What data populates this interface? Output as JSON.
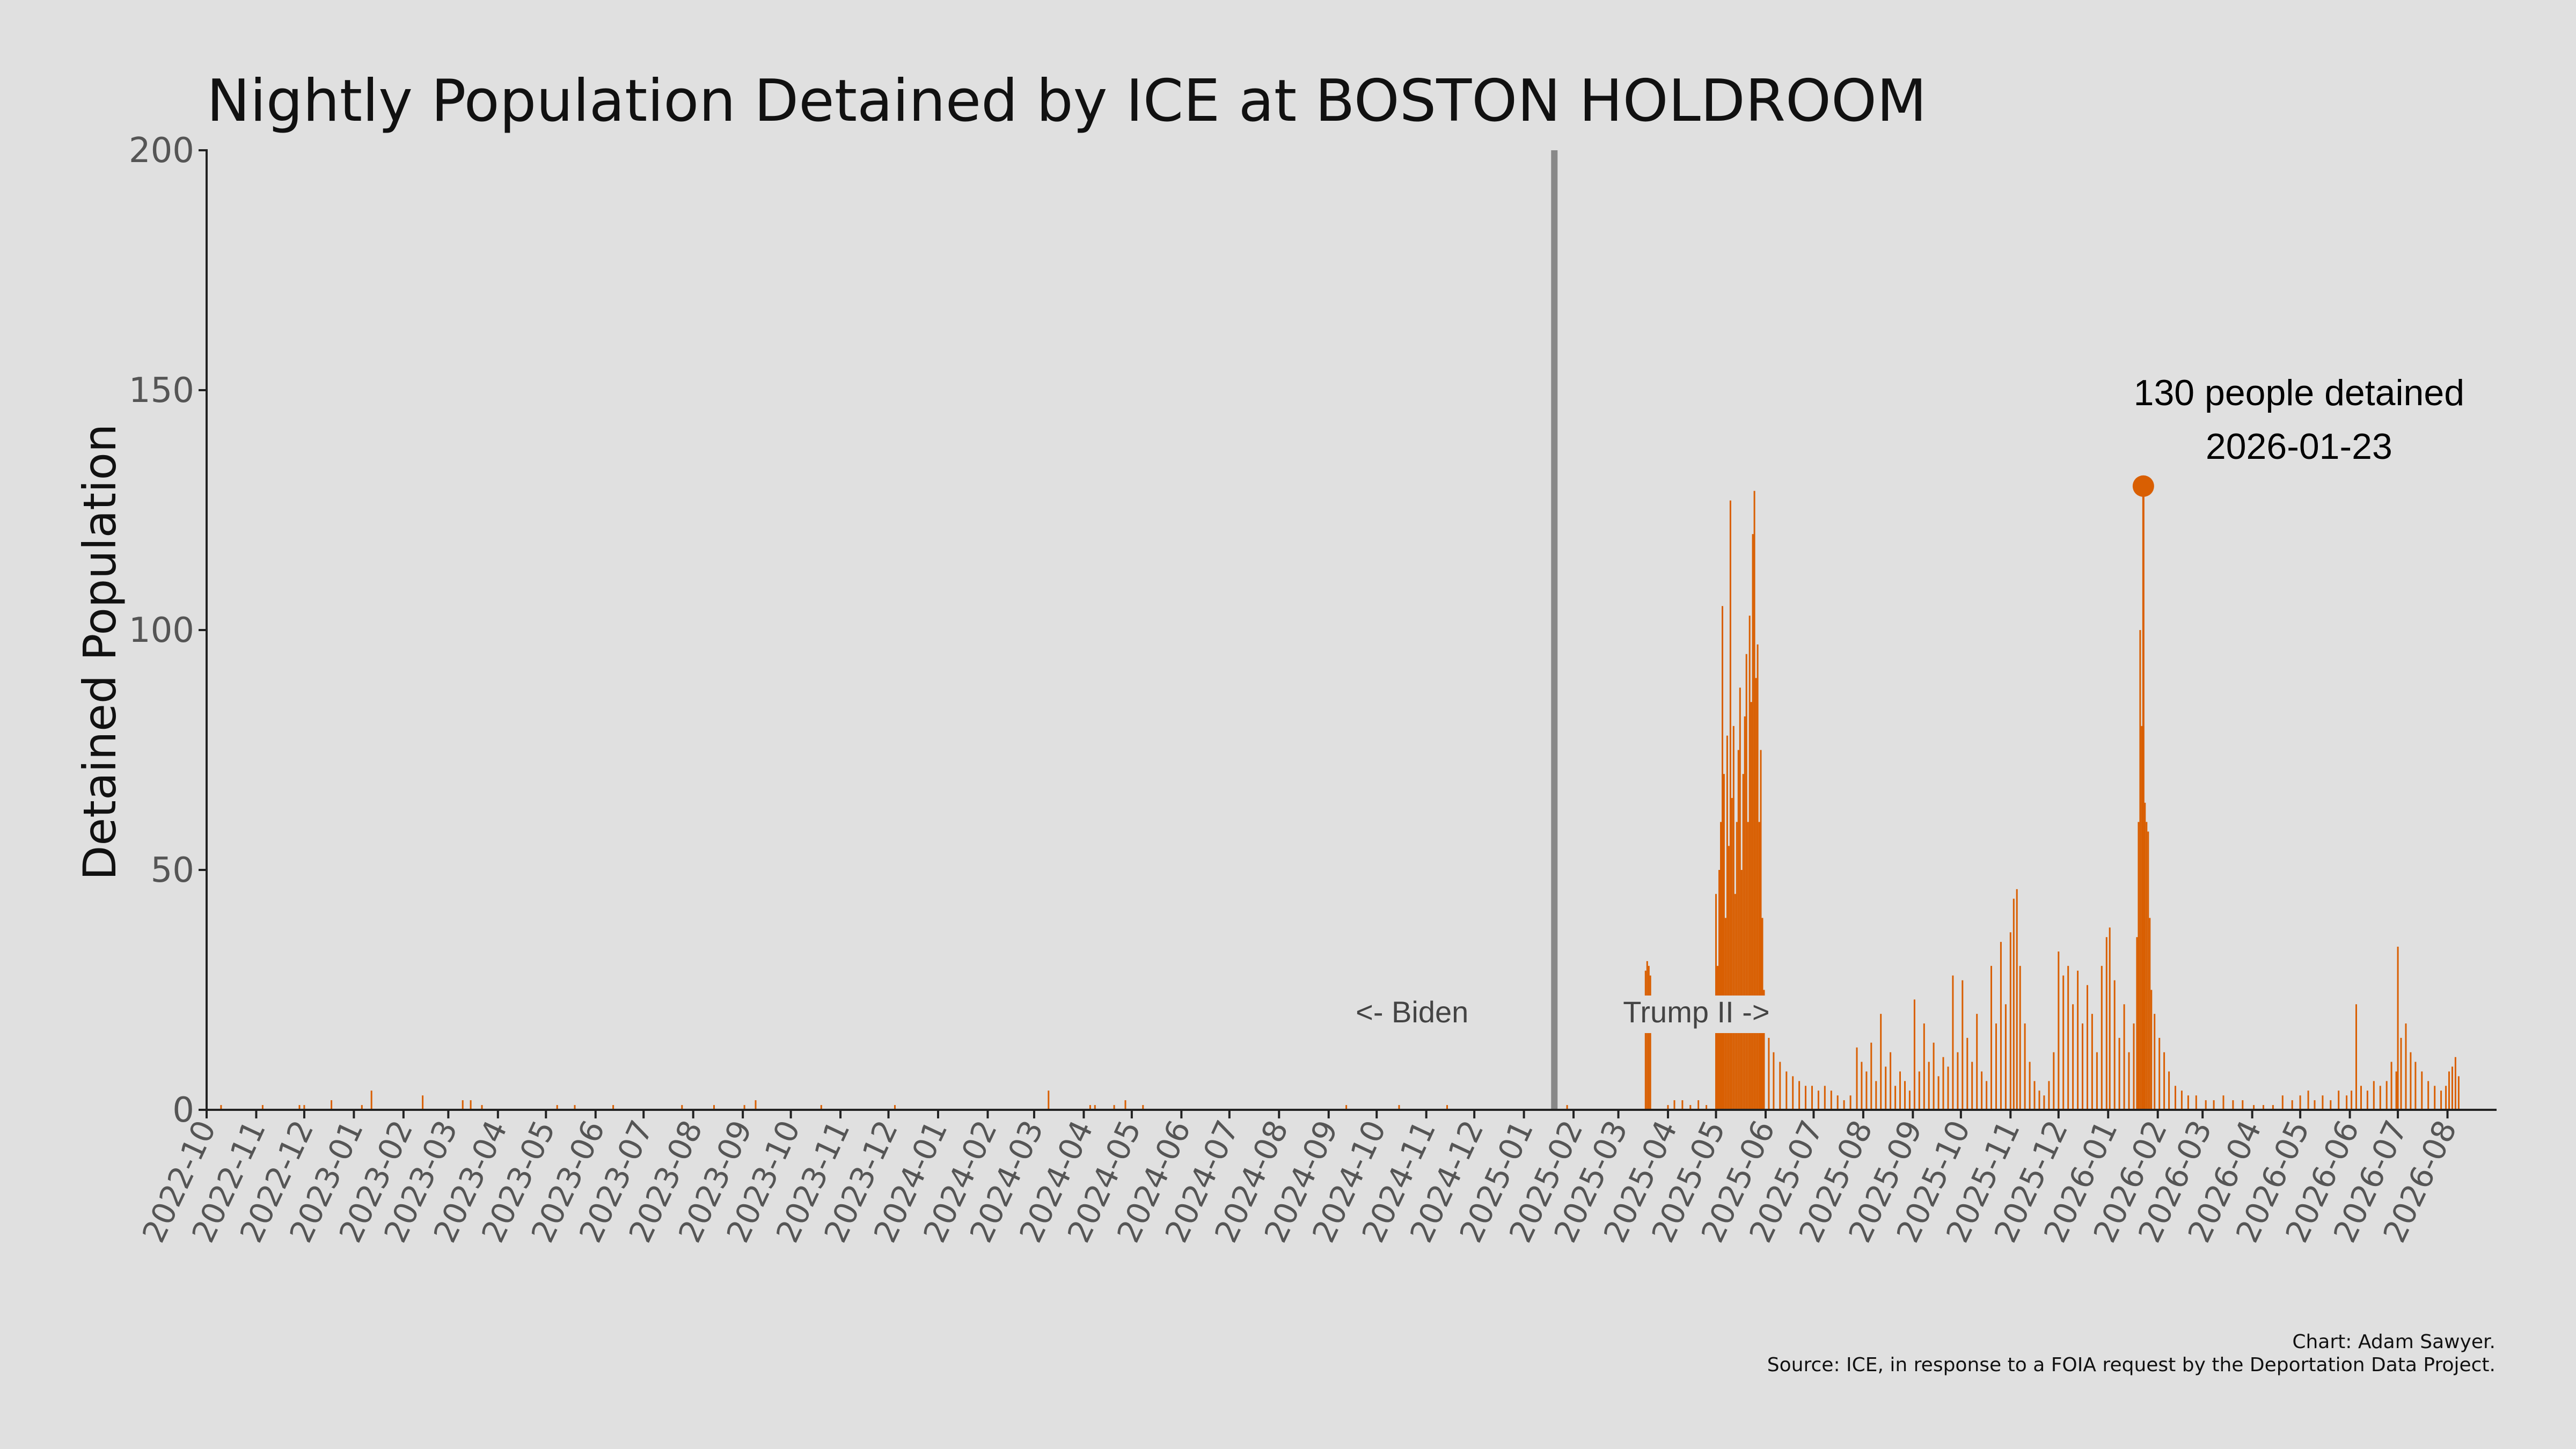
{
  "chart_data": {
    "type": "bar",
    "title": "Nightly Population Detained by ICE at BOSTON HOLDROOM",
    "xlabel": "",
    "ylabel": "Detained Population",
    "ylim": [
      0,
      200
    ],
    "yticks": [
      0,
      50,
      100,
      150,
      200
    ],
    "xlim": [
      "2022-10-01",
      "2026-08-31"
    ],
    "xticks": [
      "2022-10",
      "2022-11",
      "2022-12",
      "2023-01",
      "2023-02",
      "2023-03",
      "2023-04",
      "2023-05",
      "2023-06",
      "2023-07",
      "2023-08",
      "2023-09",
      "2023-10",
      "2023-11",
      "2023-12",
      "2024-01",
      "2024-02",
      "2024-03",
      "2024-04",
      "2024-05",
      "2024-06",
      "2024-07",
      "2024-08",
      "2024-09",
      "2024-10",
      "2024-11",
      "2024-12",
      "2025-01",
      "2025-02",
      "2025-03",
      "2025-04",
      "2025-05",
      "2025-06",
      "2025-07",
      "2025-08",
      "2025-09",
      "2025-10",
      "2025-11",
      "2025-12",
      "2026-01",
      "2026-02",
      "2026-03",
      "2026-04",
      "2026-05",
      "2026-06",
      "2026-07",
      "2026-08"
    ],
    "grid": false,
    "bar_color": "#d95f02",
    "series": [
      {
        "values": [
          [
            "2022-10-10",
            1
          ],
          [
            "2022-11-05",
            1
          ],
          [
            "2022-11-28",
            1
          ],
          [
            "2022-12-01",
            1
          ],
          [
            "2022-12-18",
            2
          ],
          [
            "2023-01-06",
            1
          ],
          [
            "2023-01-12",
            4
          ],
          [
            "2023-02-13",
            3
          ],
          [
            "2023-03-10",
            2
          ],
          [
            "2023-03-15",
            2
          ],
          [
            "2023-03-22",
            1
          ],
          [
            "2023-05-08",
            1
          ],
          [
            "2023-05-19",
            1
          ],
          [
            "2023-06-12",
            1
          ],
          [
            "2023-07-25",
            1
          ],
          [
            "2023-08-14",
            1
          ],
          [
            "2023-09-02",
            1
          ],
          [
            "2023-09-09",
            2
          ],
          [
            "2023-10-20",
            1
          ],
          [
            "2023-12-05",
            1
          ],
          [
            "2024-03-10",
            4
          ],
          [
            "2024-04-05",
            1
          ],
          [
            "2024-04-08",
            1
          ],
          [
            "2024-04-20",
            1
          ],
          [
            "2024-04-27",
            2
          ],
          [
            "2024-05-08",
            1
          ],
          [
            "2024-09-12",
            1
          ],
          [
            "2024-10-15",
            1
          ],
          [
            "2024-11-14",
            1
          ],
          [
            "2025-01-28",
            1
          ],
          [
            "2025-03-18",
            29
          ],
          [
            "2025-03-19",
            31
          ],
          [
            "2025-03-20",
            30
          ],
          [
            "2025-03-21",
            28
          ],
          [
            "2025-04-01",
            1
          ],
          [
            "2025-04-05",
            2
          ],
          [
            "2025-04-10",
            2
          ],
          [
            "2025-04-15",
            1
          ],
          [
            "2025-04-20",
            2
          ],
          [
            "2025-04-25",
            1
          ],
          [
            "2025-05-01",
            45
          ],
          [
            "2025-05-02",
            30
          ],
          [
            "2025-05-03",
            50
          ],
          [
            "2025-05-04",
            60
          ],
          [
            "2025-05-05",
            105
          ],
          [
            "2025-05-06",
            70
          ],
          [
            "2025-05-07",
            40
          ],
          [
            "2025-05-08",
            78
          ],
          [
            "2025-05-09",
            55
          ],
          [
            "2025-05-10",
            127
          ],
          [
            "2025-05-11",
            65
          ],
          [
            "2025-05-12",
            80
          ],
          [
            "2025-05-13",
            45
          ],
          [
            "2025-05-14",
            60
          ],
          [
            "2025-05-15",
            75
          ],
          [
            "2025-05-16",
            88
          ],
          [
            "2025-05-17",
            50
          ],
          [
            "2025-05-18",
            70
          ],
          [
            "2025-05-19",
            82
          ],
          [
            "2025-05-20",
            95
          ],
          [
            "2025-05-21",
            60
          ],
          [
            "2025-05-22",
            103
          ],
          [
            "2025-05-23",
            85
          ],
          [
            "2025-05-24",
            120
          ],
          [
            "2025-05-25",
            129
          ],
          [
            "2025-05-26",
            90
          ],
          [
            "2025-05-27",
            97
          ],
          [
            "2025-05-28",
            60
          ],
          [
            "2025-05-29",
            75
          ],
          [
            "2025-05-30",
            40
          ],
          [
            "2025-05-31",
            25
          ],
          [
            "2025-06-03",
            15
          ],
          [
            "2025-06-06",
            12
          ],
          [
            "2025-06-10",
            10
          ],
          [
            "2025-06-14",
            8
          ],
          [
            "2025-06-18",
            7
          ],
          [
            "2025-06-22",
            6
          ],
          [
            "2025-06-26",
            5
          ],
          [
            "2025-06-30",
            5
          ],
          [
            "2025-07-04",
            4
          ],
          [
            "2025-07-08",
            5
          ],
          [
            "2025-07-12",
            4
          ],
          [
            "2025-07-16",
            3
          ],
          [
            "2025-07-20",
            2
          ],
          [
            "2025-07-24",
            3
          ],
          [
            "2025-07-28",
            13
          ],
          [
            "2025-07-31",
            10
          ],
          [
            "2025-08-03",
            8
          ],
          [
            "2025-08-06",
            14
          ],
          [
            "2025-08-09",
            6
          ],
          [
            "2025-08-12",
            20
          ],
          [
            "2025-08-15",
            9
          ],
          [
            "2025-08-18",
            12
          ],
          [
            "2025-08-21",
            5
          ],
          [
            "2025-08-24",
            8
          ],
          [
            "2025-08-27",
            6
          ],
          [
            "2025-08-30",
            4
          ],
          [
            "2025-09-02",
            23
          ],
          [
            "2025-09-05",
            8
          ],
          [
            "2025-09-08",
            18
          ],
          [
            "2025-09-11",
            10
          ],
          [
            "2025-09-14",
            14
          ],
          [
            "2025-09-17",
            7
          ],
          [
            "2025-09-20",
            11
          ],
          [
            "2025-09-23",
            9
          ],
          [
            "2025-09-26",
            28
          ],
          [
            "2025-09-29",
            12
          ],
          [
            "2025-10-02",
            27
          ],
          [
            "2025-10-05",
            15
          ],
          [
            "2025-10-08",
            10
          ],
          [
            "2025-10-11",
            20
          ],
          [
            "2025-10-14",
            8
          ],
          [
            "2025-10-17",
            6
          ],
          [
            "2025-10-20",
            30
          ],
          [
            "2025-10-23",
            18
          ],
          [
            "2025-10-26",
            35
          ],
          [
            "2025-10-29",
            22
          ],
          [
            "2025-11-01",
            37
          ],
          [
            "2025-11-03",
            44
          ],
          [
            "2025-11-05",
            46
          ],
          [
            "2025-11-07",
            30
          ],
          [
            "2025-11-10",
            18
          ],
          [
            "2025-11-13",
            10
          ],
          [
            "2025-11-16",
            6
          ],
          [
            "2025-11-19",
            4
          ],
          [
            "2025-11-22",
            3
          ],
          [
            "2025-11-25",
            6
          ],
          [
            "2025-11-28",
            12
          ],
          [
            "2025-12-01",
            33
          ],
          [
            "2025-12-04",
            28
          ],
          [
            "2025-12-07",
            30
          ],
          [
            "2025-12-10",
            22
          ],
          [
            "2025-12-13",
            29
          ],
          [
            "2025-12-16",
            18
          ],
          [
            "2025-12-19",
            26
          ],
          [
            "2025-12-22",
            20
          ],
          [
            "2025-12-25",
            12
          ],
          [
            "2025-12-28",
            30
          ],
          [
            "2025-12-31",
            36
          ],
          [
            "2026-01-02",
            38
          ],
          [
            "2026-01-05",
            27
          ],
          [
            "2026-01-08",
            15
          ],
          [
            "2026-01-11",
            22
          ],
          [
            "2026-01-14",
            12
          ],
          [
            "2026-01-17",
            18
          ],
          [
            "2026-01-19",
            36
          ],
          [
            "2026-01-20",
            60
          ],
          [
            "2026-01-21",
            100
          ],
          [
            "2026-01-22",
            80
          ],
          [
            "2026-01-23",
            130
          ],
          [
            "2026-01-24",
            64
          ],
          [
            "2026-01-25",
            60
          ],
          [
            "2026-01-26",
            58
          ],
          [
            "2026-01-27",
            40
          ],
          [
            "2026-01-28",
            25
          ],
          [
            "2026-01-30",
            20
          ],
          [
            "2026-02-02",
            15
          ],
          [
            "2026-02-05",
            12
          ],
          [
            "2026-02-08",
            8
          ],
          [
            "2026-02-12",
            5
          ],
          [
            "2026-02-16",
            4
          ],
          [
            "2026-02-20",
            3
          ],
          [
            "2026-02-25",
            3
          ],
          [
            "2026-03-03",
            2
          ],
          [
            "2026-03-08",
            2
          ],
          [
            "2026-03-14",
            3
          ],
          [
            "2026-03-20",
            2
          ],
          [
            "2026-03-26",
            2
          ],
          [
            "2026-04-02",
            1
          ],
          [
            "2026-04-08",
            1
          ],
          [
            "2026-04-14",
            1
          ],
          [
            "2026-04-20",
            3
          ],
          [
            "2026-04-26",
            2
          ],
          [
            "2026-05-01",
            3
          ],
          [
            "2026-05-06",
            4
          ],
          [
            "2026-05-10",
            2
          ],
          [
            "2026-05-15",
            3
          ],
          [
            "2026-05-20",
            2
          ],
          [
            "2026-05-25",
            4
          ],
          [
            "2026-05-30",
            3
          ],
          [
            "2026-06-02",
            4
          ],
          [
            "2026-06-05",
            22
          ],
          [
            "2026-06-08",
            5
          ],
          [
            "2026-06-12",
            4
          ],
          [
            "2026-06-16",
            6
          ],
          [
            "2026-06-20",
            5
          ],
          [
            "2026-06-24",
            6
          ],
          [
            "2026-06-27",
            10
          ],
          [
            "2026-06-30",
            8
          ],
          [
            "2026-07-01",
            34
          ],
          [
            "2026-07-03",
            15
          ],
          [
            "2026-07-06",
            18
          ],
          [
            "2026-07-09",
            12
          ],
          [
            "2026-07-12",
            10
          ],
          [
            "2026-07-16",
            8
          ],
          [
            "2026-07-20",
            6
          ],
          [
            "2026-07-24",
            5
          ],
          [
            "2026-07-28",
            4
          ],
          [
            "2026-07-31",
            5
          ],
          [
            "2026-08-02",
            8
          ],
          [
            "2026-08-04",
            9
          ],
          [
            "2026-08-06",
            11
          ],
          [
            "2026-08-08",
            7
          ]
        ]
      }
    ],
    "vline": {
      "date": "2025-01-20",
      "color": "#888888"
    },
    "annotations": {
      "biden": "<- Biden",
      "trump": "Trump II ->",
      "peak_line1": "130 people detained",
      "peak_line2": "2026-01-23",
      "peak_date": "2026-01-23",
      "peak_value": 130
    },
    "caption_line1": "Chart: Adam Sawyer.",
    "caption_line2": "Source: ICE, in response to a FOIA request by the Deportation Data Project."
  }
}
